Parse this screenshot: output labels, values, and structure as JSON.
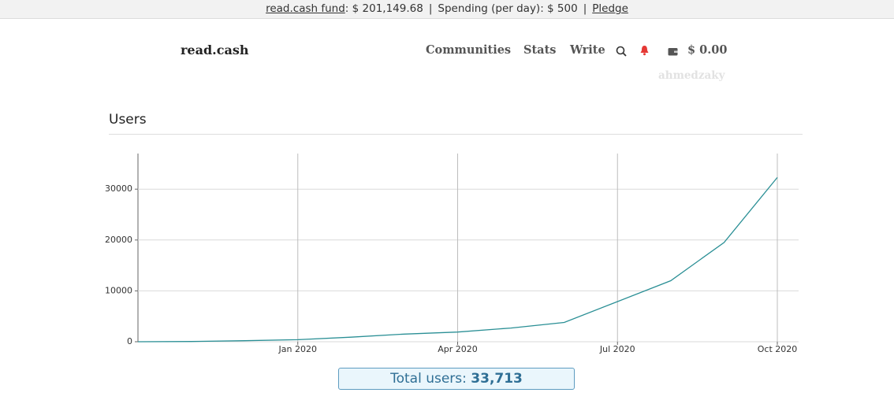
{
  "topbar": {
    "fund_link": "read.cash fund",
    "fund_amount": ": $ 201,149.68",
    "separator": "|",
    "spending": "Spending (per day): $ 500",
    "pledge": "Pledge"
  },
  "nav": {
    "logo": "read.cash",
    "communities": "Communities",
    "stats": "Stats",
    "write": "Write",
    "balance": "$ 0.00",
    "username": "ahmedzaky"
  },
  "section": {
    "title": "Users"
  },
  "chart_data": {
    "type": "line",
    "color": "#2a8f95",
    "x": [
      "2019-10",
      "2019-11",
      "2019-12",
      "2020-01",
      "2020-02",
      "2020-03",
      "2020-04",
      "2020-05",
      "2020-06",
      "2020-07",
      "2020-08",
      "2020-09",
      "2020-10"
    ],
    "values": [
      0,
      50,
      200,
      400,
      900,
      1500,
      1900,
      2700,
      3800,
      7900,
      12000,
      19500,
      32300
    ],
    "xlim": [
      "2019-10",
      "2020-10"
    ],
    "xticks": [
      {
        "value": "2020-01",
        "label": "Jan 2020"
      },
      {
        "value": "2020-04",
        "label": "Apr 2020"
      },
      {
        "value": "2020-07",
        "label": "Jul 2020"
      },
      {
        "value": "2020-10",
        "label": "Oct 2020"
      }
    ],
    "ylim": [
      0,
      37000
    ],
    "yticks": [
      0,
      10000,
      20000,
      30000
    ],
    "grid": true
  },
  "total": {
    "label": "Total users:",
    "value": "33,713"
  }
}
